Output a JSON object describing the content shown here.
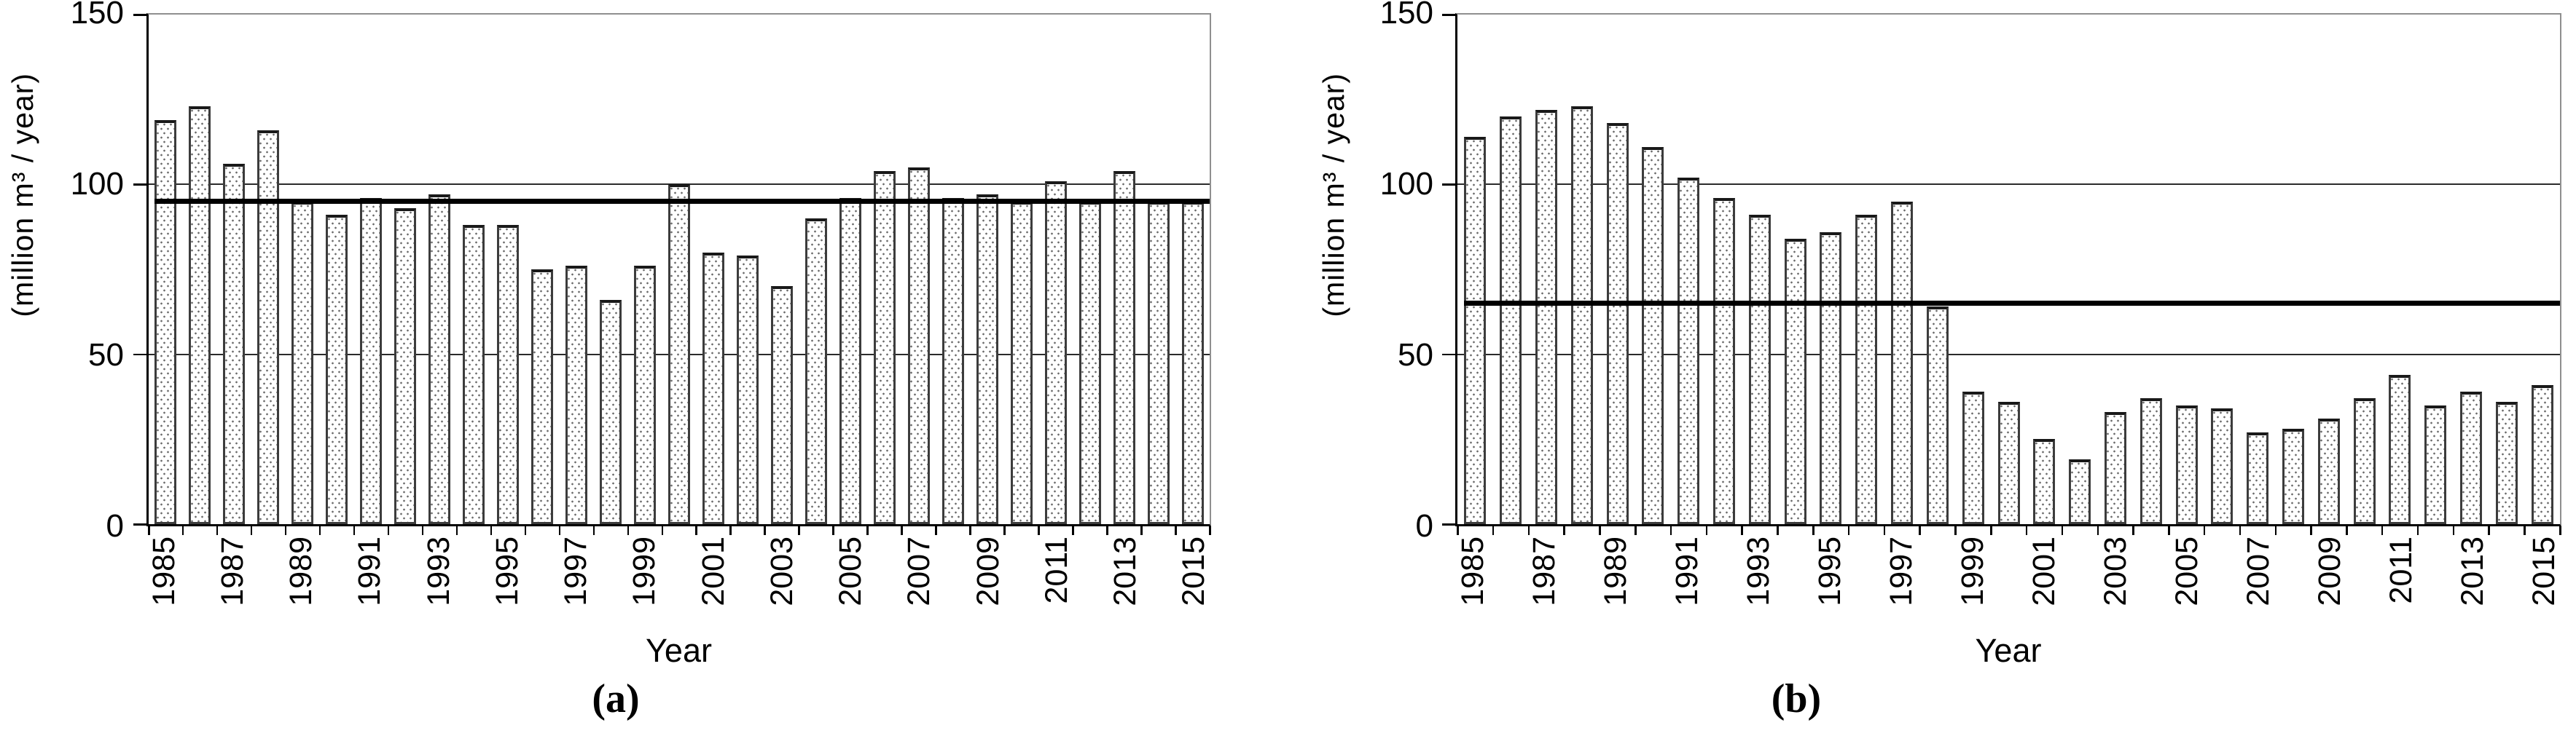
{
  "chart_data": [
    {
      "type": "bar",
      "caption": "(a)",
      "ylabel": "(million m³ / year)",
      "xlabel": "Year",
      "ylim": [
        0,
        150
      ],
      "yticks": [
        0,
        50,
        100,
        150
      ],
      "gridlines": [
        50,
        100
      ],
      "grid": true,
      "legend": "none",
      "reference_line": 95,
      "years": [
        1985,
        1986,
        1987,
        1988,
        1989,
        1990,
        1991,
        1992,
        1993,
        1994,
        1995,
        1996,
        1997,
        1998,
        1999,
        2000,
        2001,
        2002,
        2003,
        2004,
        2005,
        2006,
        2007,
        2008,
        2009,
        2010,
        2011,
        2012,
        2013,
        2014,
        2015
      ],
      "xticklabels": [
        "1985",
        "1987",
        "1989",
        "1991",
        "1993",
        "1995",
        "1997",
        "1999",
        "2001",
        "2003",
        "2005",
        "2007",
        "2009",
        "2011",
        "2013",
        "2015"
      ],
      "values": [
        119,
        123,
        106,
        116,
        95,
        91,
        96,
        93,
        97,
        88,
        88,
        75,
        76,
        66,
        76,
        100,
        80,
        79,
        70,
        90,
        96,
        104,
        105,
        96,
        97,
        95,
        101,
        95,
        104,
        95,
        95
      ]
    },
    {
      "type": "bar",
      "caption": "(b)",
      "ylabel": "(million m³ / year)",
      "xlabel": "Year",
      "ylim": [
        0,
        150
      ],
      "yticks": [
        0,
        50,
        100,
        150
      ],
      "gridlines": [
        50,
        100
      ],
      "grid": true,
      "legend": "none",
      "reference_line": 65,
      "years": [
        1985,
        1986,
        1987,
        1988,
        1989,
        1990,
        1991,
        1992,
        1993,
        1994,
        1995,
        1996,
        1997,
        1998,
        1999,
        2000,
        2001,
        2002,
        2003,
        2004,
        2005,
        2006,
        2007,
        2008,
        2009,
        2010,
        2011,
        2012,
        2013,
        2014,
        2015
      ],
      "xticklabels": [
        "1985",
        "1987",
        "1989",
        "1991",
        "1993",
        "1995",
        "1997",
        "1999",
        "2001",
        "2003",
        "2005",
        "2007",
        "2009",
        "2011",
        "2013",
        "2015"
      ],
      "values": [
        114,
        120,
        122,
        123,
        118,
        111,
        102,
        96,
        91,
        84,
        86,
        91,
        95,
        64,
        39,
        36,
        25,
        19,
        33,
        37,
        35,
        34,
        27,
        28,
        31,
        37,
        44,
        35,
        39,
        36,
        41
      ]
    }
  ]
}
